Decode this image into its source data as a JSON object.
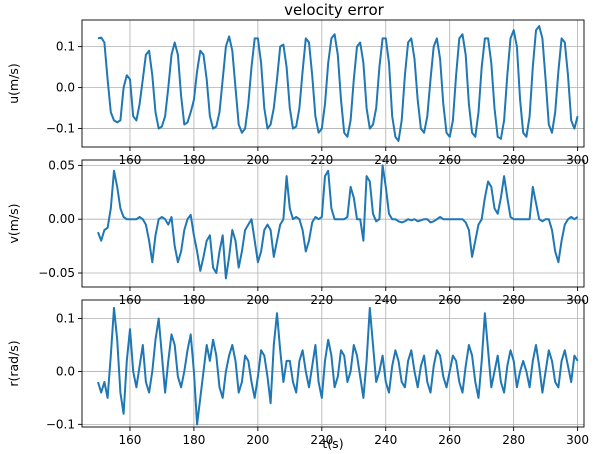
{
  "title": "velocity error",
  "series_color": "#1f77b4",
  "chart_data": [
    {
      "type": "line",
      "ylabel": "u(m/s)",
      "xlabel": "",
      "xlim": [
        145,
        302
      ],
      "ylim": [
        -0.145,
        0.165
      ],
      "xticks": [
        160,
        180,
        200,
        220,
        240,
        260,
        280,
        300
      ],
      "yticks": [
        0.1,
        0.0,
        -0.1
      ],
      "ytick_labels": [
        "0.1",
        "0.0",
        "−0.1"
      ],
      "grid": true,
      "x": [
        150,
        151,
        152,
        153,
        154,
        155,
        156,
        157,
        158,
        159,
        160,
        161,
        162,
        163,
        164,
        165,
        166,
        167,
        168,
        169,
        170,
        171,
        172,
        173,
        174,
        175,
        176,
        177,
        178,
        179,
        180,
        181,
        182,
        183,
        184,
        185,
        186,
        187,
        188,
        189,
        190,
        191,
        192,
        193,
        194,
        195,
        196,
        197,
        198,
        199,
        200,
        201,
        202,
        203,
        204,
        205,
        206,
        207,
        208,
        209,
        210,
        211,
        212,
        213,
        214,
        215,
        216,
        217,
        218,
        219,
        220,
        221,
        222,
        223,
        224,
        225,
        226,
        227,
        228,
        229,
        230,
        231,
        232,
        233,
        234,
        235,
        236,
        237,
        238,
        239,
        240,
        241,
        242,
        243,
        244,
        245,
        246,
        247,
        248,
        249,
        250,
        251,
        252,
        253,
        254,
        255,
        256,
        257,
        258,
        259,
        260,
        261,
        262,
        263,
        264,
        265,
        266,
        267,
        268,
        269,
        270,
        271,
        272,
        273,
        274,
        275,
        276,
        277,
        278,
        279,
        280,
        281,
        282,
        283,
        284,
        285,
        286,
        287,
        288,
        289,
        290,
        291,
        292,
        293,
        294,
        295,
        296,
        297,
        298,
        299,
        300
      ],
      "values": [
        0.12,
        0.122,
        0.11,
        0.02,
        -0.06,
        -0.08,
        -0.085,
        -0.08,
        0.0,
        0.03,
        0.02,
        -0.07,
        -0.08,
        -0.04,
        0.02,
        0.08,
        0.09,
        0.03,
        -0.06,
        -0.1,
        -0.095,
        -0.07,
        0.0,
        0.08,
        0.11,
        0.08,
        -0.02,
        -0.09,
        -0.085,
        -0.06,
        -0.03,
        0.04,
        0.09,
        0.08,
        0.02,
        -0.07,
        -0.1,
        -0.095,
        -0.06,
        0.02,
        0.1,
        0.125,
        0.09,
        0.0,
        -0.09,
        -0.11,
        -0.1,
        -0.04,
        0.05,
        0.12,
        0.12,
        0.06,
        -0.05,
        -0.1,
        -0.09,
        -0.05,
        0.02,
        0.1,
        0.105,
        0.05,
        -0.05,
        -0.1,
        -0.095,
        -0.05,
        0.04,
        0.12,
        0.11,
        0.03,
        -0.07,
        -0.11,
        -0.1,
        -0.04,
        0.06,
        0.12,
        0.13,
        0.08,
        -0.03,
        -0.11,
        -0.12,
        -0.08,
        0.02,
        0.1,
        0.11,
        0.06,
        -0.05,
        -0.1,
        -0.09,
        -0.05,
        0.05,
        0.12,
        0.12,
        0.06,
        -0.07,
        -0.12,
        -0.13,
        -0.08,
        0.03,
        0.11,
        0.12,
        0.07,
        -0.03,
        -0.1,
        -0.11,
        -0.07,
        0.02,
        0.1,
        0.12,
        0.07,
        -0.04,
        -0.11,
        -0.12,
        -0.08,
        0.03,
        0.12,
        0.13,
        0.08,
        -0.04,
        -0.11,
        -0.12,
        -0.06,
        0.05,
        0.12,
        0.12,
        0.06,
        -0.05,
        -0.12,
        -0.125,
        -0.08,
        0.03,
        0.12,
        0.14,
        0.1,
        -0.03,
        -0.11,
        -0.12,
        -0.07,
        0.05,
        0.14,
        0.15,
        0.12,
        0.02,
        -0.09,
        -0.11,
        -0.06,
        0.04,
        0.12,
        0.11,
        0.03,
        -0.08,
        -0.1,
        -0.07
      ]
    },
    {
      "type": "line",
      "ylabel": "v(m/s)",
      "xlabel": "",
      "xlim": [
        145,
        302
      ],
      "ylim": [
        -0.063,
        0.055
      ],
      "xticks": [
        160,
        180,
        200,
        220,
        240,
        260,
        280,
        300
      ],
      "yticks": [
        0.05,
        0.0,
        -0.05
      ],
      "ytick_labels": [
        "0.05",
        "0.00",
        "−0.05"
      ],
      "grid": true,
      "x": [
        150,
        151,
        152,
        153,
        154,
        155,
        156,
        157,
        158,
        159,
        160,
        161,
        162,
        163,
        164,
        165,
        166,
        167,
        168,
        169,
        170,
        171,
        172,
        173,
        174,
        175,
        176,
        177,
        178,
        179,
        180,
        181,
        182,
        183,
        184,
        185,
        186,
        187,
        188,
        189,
        190,
        191,
        192,
        193,
        194,
        195,
        196,
        197,
        198,
        199,
        200,
        201,
        202,
        203,
        204,
        205,
        206,
        207,
        208,
        209,
        210,
        211,
        212,
        213,
        214,
        215,
        216,
        217,
        218,
        219,
        220,
        221,
        222,
        223,
        224,
        225,
        226,
        227,
        228,
        229,
        230,
        231,
        232,
        233,
        234,
        235,
        236,
        237,
        238,
        239,
        240,
        241,
        242,
        243,
        244,
        245,
        246,
        247,
        248,
        249,
        250,
        251,
        252,
        253,
        254,
        255,
        256,
        257,
        258,
        259,
        260,
        261,
        262,
        263,
        264,
        265,
        266,
        267,
        268,
        269,
        270,
        271,
        272,
        273,
        274,
        275,
        276,
        277,
        278,
        279,
        280,
        281,
        282,
        283,
        284,
        285,
        286,
        287,
        288,
        289,
        290,
        291,
        292,
        293,
        294,
        295,
        296,
        297,
        298,
        299,
        300
      ],
      "values": [
        -0.012,
        -0.02,
        -0.01,
        -0.008,
        0.01,
        0.045,
        0.03,
        0.01,
        0.002,
        0.0,
        0.0,
        0.0,
        0.0,
        0.002,
        0.0,
        -0.005,
        -0.02,
        -0.04,
        -0.015,
        0.0,
        0.002,
        0.0,
        -0.005,
        0.002,
        -0.025,
        -0.04,
        -0.03,
        -0.01,
        0.0,
        0.004,
        -0.015,
        -0.03,
        -0.048,
        -0.035,
        -0.02,
        -0.015,
        -0.045,
        -0.05,
        -0.03,
        -0.015,
        -0.055,
        -0.035,
        -0.01,
        -0.02,
        -0.045,
        -0.03,
        -0.01,
        -0.005,
        0.0,
        -0.02,
        -0.04,
        -0.03,
        -0.01,
        -0.005,
        -0.01,
        -0.035,
        -0.02,
        -0.005,
        0.0,
        0.04,
        0.01,
        0.0,
        0.002,
        0.0,
        -0.01,
        -0.03,
        -0.02,
        -0.003,
        0.002,
        0.0,
        0.002,
        0.04,
        0.045,
        0.01,
        0.0,
        0.0,
        0.0,
        0.0,
        0.002,
        0.03,
        0.02,
        0.0,
        0.0,
        -0.02,
        0.04,
        0.035,
        0.005,
        -0.002,
        0.0,
        0.05,
        0.03,
        0.005,
        0.0,
        0.0,
        -0.002,
        -0.003,
        -0.002,
        0.0,
        -0.001,
        0.0,
        -0.002,
        -0.001,
        0.0,
        0.0,
        -0.003,
        -0.002,
        0.0,
        0.002,
        0.0,
        0.0,
        0.0,
        0.0,
        0.0,
        0.0,
        0.0,
        -0.003,
        -0.01,
        -0.035,
        -0.02,
        -0.005,
        0.0,
        0.02,
        0.035,
        0.03,
        0.01,
        0.005,
        0.02,
        0.04,
        0.02,
        0.002,
        0.0,
        0.0,
        0.0,
        0.0,
        0.0,
        0.0,
        0.03,
        0.015,
        0.0,
        -0.002,
        0.0,
        0.0,
        -0.01,
        -0.03,
        -0.04,
        -0.02,
        -0.005,
        0.0,
        0.002,
        0.0,
        0.002
      ]
    },
    {
      "type": "line",
      "ylabel": "r(rad/s)",
      "xlabel": "t(s)",
      "xlim": [
        145,
        302
      ],
      "ylim": [
        -0.105,
        0.135
      ],
      "xticks": [
        160,
        180,
        200,
        220,
        240,
        260,
        280,
        300
      ],
      "yticks": [
        0.1,
        0.0,
        -0.1
      ],
      "ytick_labels": [
        "0.1",
        "0.0",
        "−0.1"
      ],
      "grid": true,
      "x": [
        150,
        151,
        152,
        153,
        154,
        155,
        156,
        157,
        158,
        159,
        160,
        161,
        162,
        163,
        164,
        165,
        166,
        167,
        168,
        169,
        170,
        171,
        172,
        173,
        174,
        175,
        176,
        177,
        178,
        179,
        180,
        181,
        182,
        183,
        184,
        185,
        186,
        187,
        188,
        189,
        190,
        191,
        192,
        193,
        194,
        195,
        196,
        197,
        198,
        199,
        200,
        201,
        202,
        203,
        204,
        205,
        206,
        207,
        208,
        209,
        210,
        211,
        212,
        213,
        214,
        215,
        216,
        217,
        218,
        219,
        220,
        221,
        222,
        223,
        224,
        225,
        226,
        227,
        228,
        229,
        230,
        231,
        232,
        233,
        234,
        235,
        236,
        237,
        238,
        239,
        240,
        241,
        242,
        243,
        244,
        245,
        246,
        247,
        248,
        249,
        250,
        251,
        252,
        253,
        254,
        255,
        256,
        257,
        258,
        259,
        260,
        261,
        262,
        263,
        264,
        265,
        266,
        267,
        268,
        269,
        270,
        271,
        272,
        273,
        274,
        275,
        276,
        277,
        278,
        279,
        280,
        281,
        282,
        283,
        284,
        285,
        286,
        287,
        288,
        289,
        290,
        291,
        292,
        293,
        294,
        295,
        296,
        297,
        298,
        299,
        300
      ],
      "values": [
        -0.02,
        -0.04,
        -0.02,
        -0.05,
        0.03,
        0.12,
        0.06,
        -0.04,
        -0.08,
        0.02,
        0.08,
        0.0,
        -0.03,
        0.01,
        0.05,
        -0.02,
        -0.04,
        0.0,
        0.06,
        0.1,
        0.03,
        -0.04,
        0.02,
        0.07,
        0.05,
        -0.01,
        -0.03,
        0.0,
        0.04,
        0.07,
        0.0,
        -0.1,
        -0.05,
        0.0,
        0.05,
        0.02,
        0.06,
        0.03,
        -0.03,
        -0.05,
        0.0,
        0.03,
        0.05,
        0.02,
        -0.04,
        -0.02,
        0.03,
        0.02,
        -0.02,
        -0.05,
        -0.01,
        0.04,
        0.03,
        -0.01,
        -0.06,
        0.05,
        0.11,
        0.04,
        -0.02,
        0.02,
        0.02,
        -0.02,
        -0.04,
        0.02,
        0.04,
        0.0,
        -0.03,
        0.01,
        0.05,
        -0.02,
        -0.05,
        0.02,
        0.06,
        0.03,
        -0.03,
        -0.01,
        0.04,
        0.03,
        -0.02,
        0.0,
        0.05,
        0.03,
        -0.01,
        -0.05,
        0.02,
        0.12,
        0.05,
        -0.02,
        0.0,
        0.03,
        -0.02,
        -0.04,
        0.01,
        0.04,
        0.02,
        -0.02,
        -0.03,
        0.02,
        0.04,
        0.0,
        -0.03,
        0.01,
        0.03,
        -0.02,
        -0.04,
        0.01,
        0.04,
        0.03,
        -0.01,
        -0.03,
        0.0,
        0.03,
        0.02,
        -0.02,
        -0.04,
        0.01,
        0.05,
        0.03,
        -0.02,
        -0.05,
        0.02,
        0.11,
        0.04,
        -0.03,
        0.0,
        0.03,
        -0.02,
        -0.04,
        0.01,
        0.04,
        0.02,
        -0.03,
        0.0,
        0.02,
        0.0,
        -0.03,
        0.02,
        0.05,
        0.01,
        -0.04,
        0.0,
        0.04,
        0.02,
        -0.02,
        -0.03,
        0.02,
        0.04,
        0.01,
        -0.02,
        0.03,
        0.02
      ]
    }
  ]
}
